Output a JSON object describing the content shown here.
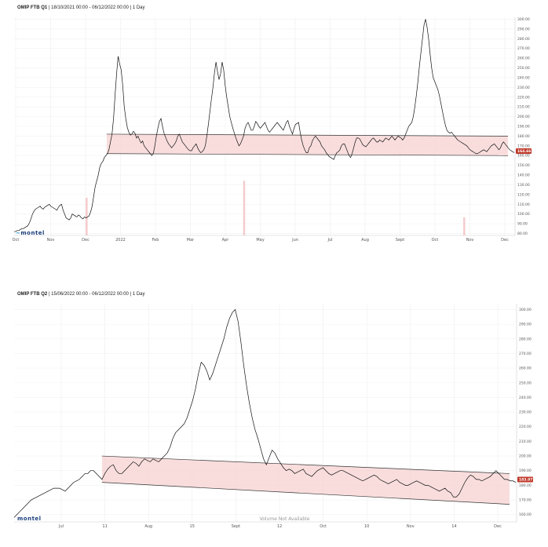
{
  "chart_data": [
    {
      "type": "line",
      "title": {
        "name": "OMIP FTB Q1",
        "range": "18/10/2021 00:00 - 06/12/2022 00:00",
        "interval": "1 Day"
      },
      "x_labels": [
        "Oct",
        "Nov",
        "Dec",
        "2022",
        "Feb",
        "Mar",
        "Apr",
        "May",
        "Jun",
        "Jul",
        "Aug",
        "Sept",
        "Oct",
        "Nov",
        "Dec"
      ],
      "y_ticks": [
        "300.00",
        "290.00",
        "280.00",
        "270.00",
        "260.00",
        "250.00",
        "240.00",
        "230.00",
        "220.00",
        "210.00",
        "200.00",
        "190.00",
        "180.00",
        "170.00",
        "160.00",
        "150.00",
        "140.00",
        "130.00",
        "120.00",
        "110.00",
        "100.00",
        "90.00",
        "80.00"
      ],
      "ylim": [
        78,
        302
      ],
      "last_price": "164.66",
      "series": [
        {
          "values": [
            82,
            82,
            83,
            83,
            84,
            85,
            85,
            86,
            87,
            88,
            91,
            95,
            100,
            103,
            105,
            106,
            107,
            108,
            106,
            105,
            107,
            108,
            109,
            110,
            108,
            107,
            106,
            105,
            104,
            107,
            109,
            110,
            104,
            100,
            96,
            95,
            94,
            96,
            100,
            99,
            98,
            97,
            99,
            98,
            96,
            95,
            97,
            96,
            97,
            98,
            102,
            108,
            118,
            128,
            134,
            140,
            148,
            152,
            154,
            158,
            160,
            162,
            166,
            174,
            182,
            198,
            222,
            244,
            262,
            254,
            248,
            232,
            210,
            198,
            189,
            184,
            181,
            182,
            185,
            183,
            178,
            180,
            176,
            173,
            175,
            170,
            168,
            166,
            164,
            162,
            160,
            162,
            170,
            180,
            188,
            195,
            198,
            190,
            183,
            179,
            175,
            172,
            170,
            168,
            170,
            172,
            175,
            180,
            182,
            178,
            174,
            172,
            170,
            168,
            166,
            165,
            165,
            168,
            170,
            172,
            168,
            165,
            163,
            164,
            166,
            170,
            180,
            192,
            205,
            218,
            230,
            245,
            256,
            246,
            238,
            244,
            256,
            248,
            232,
            220,
            210,
            200,
            194,
            188,
            183,
            178,
            174,
            170,
            172,
            176,
            180,
            188,
            192,
            194,
            190,
            186,
            186,
            190,
            195,
            193,
            190,
            188,
            190,
            192,
            194,
            190,
            186,
            184,
            186,
            188,
            190,
            192,
            194,
            192,
            190,
            188,
            186,
            190,
            194,
            196,
            190,
            186,
            182,
            188,
            192,
            193,
            194,
            184,
            176,
            170,
            166,
            163,
            163,
            168,
            170,
            175,
            178,
            180,
            178,
            176,
            174,
            170,
            168,
            166,
            163,
            161,
            159,
            158,
            157,
            156,
            160,
            163,
            164,
            166,
            170,
            172,
            172,
            168,
            164,
            160,
            158,
            162,
            168,
            174,
            178,
            178,
            177,
            174,
            171,
            170,
            169,
            171,
            173,
            175,
            177,
            178,
            176,
            174,
            174,
            176,
            175,
            174,
            176,
            178,
            177,
            176,
            178,
            180,
            178,
            176,
            178,
            180,
            179,
            178,
            176,
            178,
            182,
            186,
            190,
            192,
            194,
            200,
            210,
            222,
            236,
            252,
            266,
            280,
            294,
            300,
            292,
            280,
            264,
            250,
            240,
            236,
            232,
            228,
            222,
            214,
            206,
            198,
            191,
            186,
            184,
            183,
            184,
            182,
            180,
            178,
            176,
            175,
            174,
            173,
            172,
            171,
            170,
            168,
            166,
            165,
            164,
            163,
            162,
            162,
            163,
            164,
            165,
            166,
            165,
            164,
            166,
            168,
            170,
            171,
            172,
            170,
            168,
            166,
            168,
            172,
            174,
            172,
            170,
            168,
            166,
            165,
            164,
            163
          ]
        },
        {
          "name": "channel_upper",
          "values": [
            182,
            180
          ]
        },
        {
          "name": "channel_lower",
          "values": [
            162,
            160
          ]
        }
      ],
      "volume": [
        0,
        0,
        0,
        0,
        0,
        0,
        0,
        0,
        0,
        0,
        0,
        0,
        0,
        0,
        0,
        0,
        0,
        0,
        0,
        0,
        0,
        0,
        0,
        0,
        0,
        0,
        0,
        0,
        0,
        0,
        0,
        0,
        0,
        0,
        0,
        0,
        0,
        0,
        0,
        0,
        0,
        0,
        0,
        0,
        0,
        0,
        0,
        0,
        0,
        0,
        0,
        0,
        0,
        0,
        0,
        0,
        0,
        0,
        0,
        0,
        0,
        0,
        0,
        0,
        0,
        0,
        0,
        0,
        0,
        0,
        0,
        0,
        0,
        0,
        0,
        0,
        0,
        0,
        0,
        0,
        0,
        0,
        0,
        0,
        0,
        0,
        0,
        0,
        0,
        0,
        0,
        0,
        0,
        0,
        0,
        0,
        0,
        0,
        0,
        0,
        0,
        0,
        0,
        0,
        0,
        0,
        0,
        0,
        0,
        0,
        0,
        0,
        0,
        0,
        0,
        0,
        0,
        0,
        0,
        0,
        0,
        0,
        0,
        0,
        0,
        0,
        0,
        0,
        0,
        0,
        0,
        0,
        0,
        0,
        0,
        0,
        0,
        0,
        0,
        0,
        0,
        0,
        0,
        0,
        0,
        0,
        0,
        0,
        0,
        0,
        0,
        0,
        0,
        0,
        0,
        0,
        0,
        0,
        0,
        0,
        0,
        0,
        0,
        0,
        0,
        0,
        0,
        0,
        0,
        0,
        0,
        0,
        0,
        0,
        0,
        0,
        0,
        0,
        0,
        0,
        0,
        0,
        0,
        0,
        0,
        0,
        0,
        0,
        0,
        0,
        0,
        0,
        0,
        0,
        0,
        0,
        0,
        0,
        0,
        0,
        0,
        0,
        0,
        0,
        0,
        0,
        0,
        0,
        0,
        0,
        0,
        0,
        0,
        0,
        0,
        0,
        0,
        0,
        0,
        0,
        0,
        0,
        0,
        0,
        0,
        0,
        0,
        0,
        0,
        0,
        0,
        0,
        0,
        0,
        0,
        0,
        0,
        0,
        0,
        0,
        0,
        0,
        0,
        0,
        0,
        0,
        0,
        0,
        0,
        0,
        0,
        0,
        0,
        0,
        0,
        0,
        0,
        0,
        0,
        0,
        0,
        0,
        0,
        0,
        0,
        0,
        0,
        0,
        0,
        0,
        0,
        0,
        0,
        0,
        0,
        0,
        0,
        0,
        0,
        0,
        0,
        0,
        0,
        0,
        0,
        0,
        0,
        0,
        0,
        0,
        0,
        0,
        0,
        0,
        0,
        0,
        0,
        0,
        0,
        0,
        0,
        0,
        0,
        0,
        0,
        0,
        0,
        0,
        0,
        0,
        0,
        0
      ],
      "volume_bars": [
        {
          "pos": 0.145,
          "value": 1.0
        },
        {
          "pos": 0.46,
          "value": 1.45
        },
        {
          "pos": 0.9,
          "value": 0.48
        }
      ],
      "grid": true
    },
    {
      "type": "line",
      "title": {
        "name": "OMIP FTB Q2",
        "range": "15/06/2022 00:00 - 06/12/2022 00:00",
        "interval": "1 Day"
      },
      "x_labels": [
        "Jul",
        "11",
        "Aug",
        "15",
        "Sept",
        "12",
        "Oct",
        "10",
        "Nov",
        "14",
        "Dec"
      ],
      "y_ticks": [
        "300.00",
        "290.00",
        "280.00",
        "270.00",
        "260.00",
        "250.00",
        "240.00",
        "230.00",
        "220.00",
        "210.00",
        "200.00",
        "190.00",
        "180.00",
        "170.00",
        "160.00"
      ],
      "ylim": [
        155,
        304
      ],
      "last_price": "183.97",
      "volume_note": "Volume Not Available",
      "series": [
        {
          "values": [
            158,
            160,
            162,
            164,
            166,
            168,
            170,
            171,
            172,
            173,
            174,
            175,
            176,
            177,
            178,
            178,
            178,
            177,
            176,
            178,
            180,
            182,
            183,
            184,
            186,
            188,
            188,
            190,
            190,
            188,
            186,
            184,
            188,
            191,
            193,
            194,
            190,
            188,
            188,
            190,
            192,
            194,
            196,
            195,
            193,
            196,
            198,
            197,
            196,
            198,
            197,
            196,
            198,
            200,
            202,
            206,
            212,
            216,
            218,
            220,
            222,
            226,
            232,
            238,
            246,
            256,
            264,
            262,
            258,
            252,
            256,
            262,
            268,
            274,
            280,
            288,
            294,
            298,
            300,
            292,
            278,
            262,
            248,
            236,
            226,
            218,
            212,
            205,
            198,
            194,
            199,
            204,
            202,
            198,
            195,
            192,
            190,
            191,
            190,
            188,
            189,
            190,
            191,
            188,
            187,
            186,
            188,
            190,
            191,
            192,
            190,
            188,
            187,
            188,
            189,
            190,
            190,
            189,
            188,
            187,
            186,
            185,
            184,
            183,
            184,
            185,
            186,
            187,
            186,
            184,
            183,
            182,
            181,
            182,
            183,
            184,
            182,
            181,
            180,
            180,
            181,
            182,
            183,
            182,
            181,
            180,
            180,
            179,
            178,
            177,
            176,
            177,
            178,
            176,
            175,
            172,
            172,
            174,
            178,
            182,
            185,
            187,
            186,
            184,
            184,
            183,
            184,
            185,
            186,
            188,
            190,
            188,
            186,
            184,
            184,
            183,
            183,
            182
          ]
        },
        {
          "name": "channel_upper",
          "values": [
            200,
            188
          ]
        },
        {
          "name": "channel_lower",
          "values": [
            182,
            167
          ]
        }
      ],
      "grid": true
    }
  ],
  "ui": {
    "logo": "montel"
  }
}
